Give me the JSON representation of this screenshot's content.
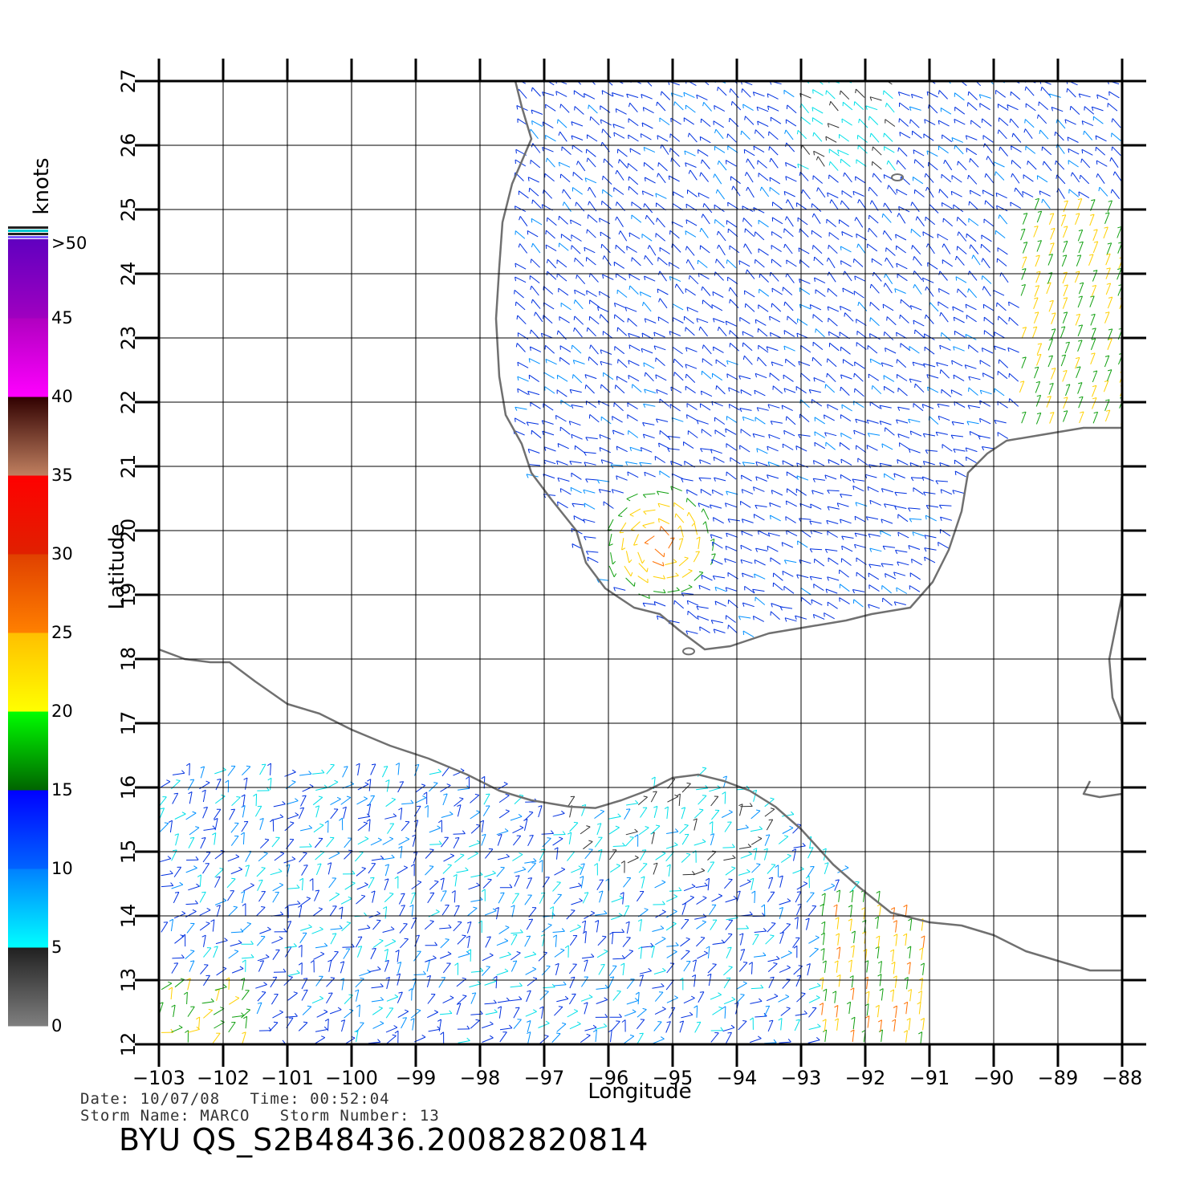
{
  "map": {
    "lon_range": [
      -103,
      -88
    ],
    "lat_range": [
      12,
      27
    ],
    "lon_ticks": [
      -103,
      -102,
      -101,
      -100,
      -99,
      -98,
      -97,
      -96,
      -95,
      -94,
      -93,
      -92,
      -91,
      -90,
      -89,
      -88
    ],
    "lat_ticks": [
      12,
      13,
      14,
      15,
      16,
      17,
      18,
      19,
      20,
      21,
      22,
      23,
      24,
      25,
      26,
      27
    ],
    "x_label": "Longitude",
    "y_label": "Latitude",
    "grid": true,
    "coastline_color": "#707070",
    "vector_type": "wind barbs"
  },
  "colorbar": {
    "unit_label": "knots",
    "tick_labels": [
      ">50",
      "45",
      "40",
      "35",
      "30",
      "25",
      "20",
      "15",
      "10",
      "5",
      "0"
    ],
    "bands": [
      {
        "from": 0,
        "to": 5,
        "colors": [
          "#7f7f7f",
          "#202020"
        ]
      },
      {
        "from": 5,
        "to": 10,
        "colors": [
          "#00ffff",
          "#0080ff"
        ]
      },
      {
        "from": 10,
        "to": 15,
        "colors": [
          "#0064ff",
          "#0000ff"
        ]
      },
      {
        "from": 15,
        "to": 20,
        "colors": [
          "#006400",
          "#00ff00"
        ]
      },
      {
        "from": 20,
        "to": 25,
        "colors": [
          "#ffff00",
          "#ffbf00"
        ]
      },
      {
        "from": 25,
        "to": 30,
        "colors": [
          "#ff8000",
          "#e04000"
        ]
      },
      {
        "from": 30,
        "to": 35,
        "colors": [
          "#e02000",
          "#ff0000"
        ]
      },
      {
        "from": 35,
        "to": 40,
        "colors": [
          "#c08060",
          "#300000"
        ]
      },
      {
        "from": 40,
        "to": 45,
        "colors": [
          "#ff00ff",
          "#b000c0"
        ]
      },
      {
        "from": 45,
        "to": 50,
        "colors": [
          "#a000c0",
          "#6000c0"
        ]
      }
    ]
  },
  "footer": {
    "date_line": "Date: 10/07/08   Time: 00:52:04",
    "storm_line": "Storm Name: MARCO   Storm Number: 13",
    "product_id": "BYU QS_S2B48436.20082820814"
  }
}
